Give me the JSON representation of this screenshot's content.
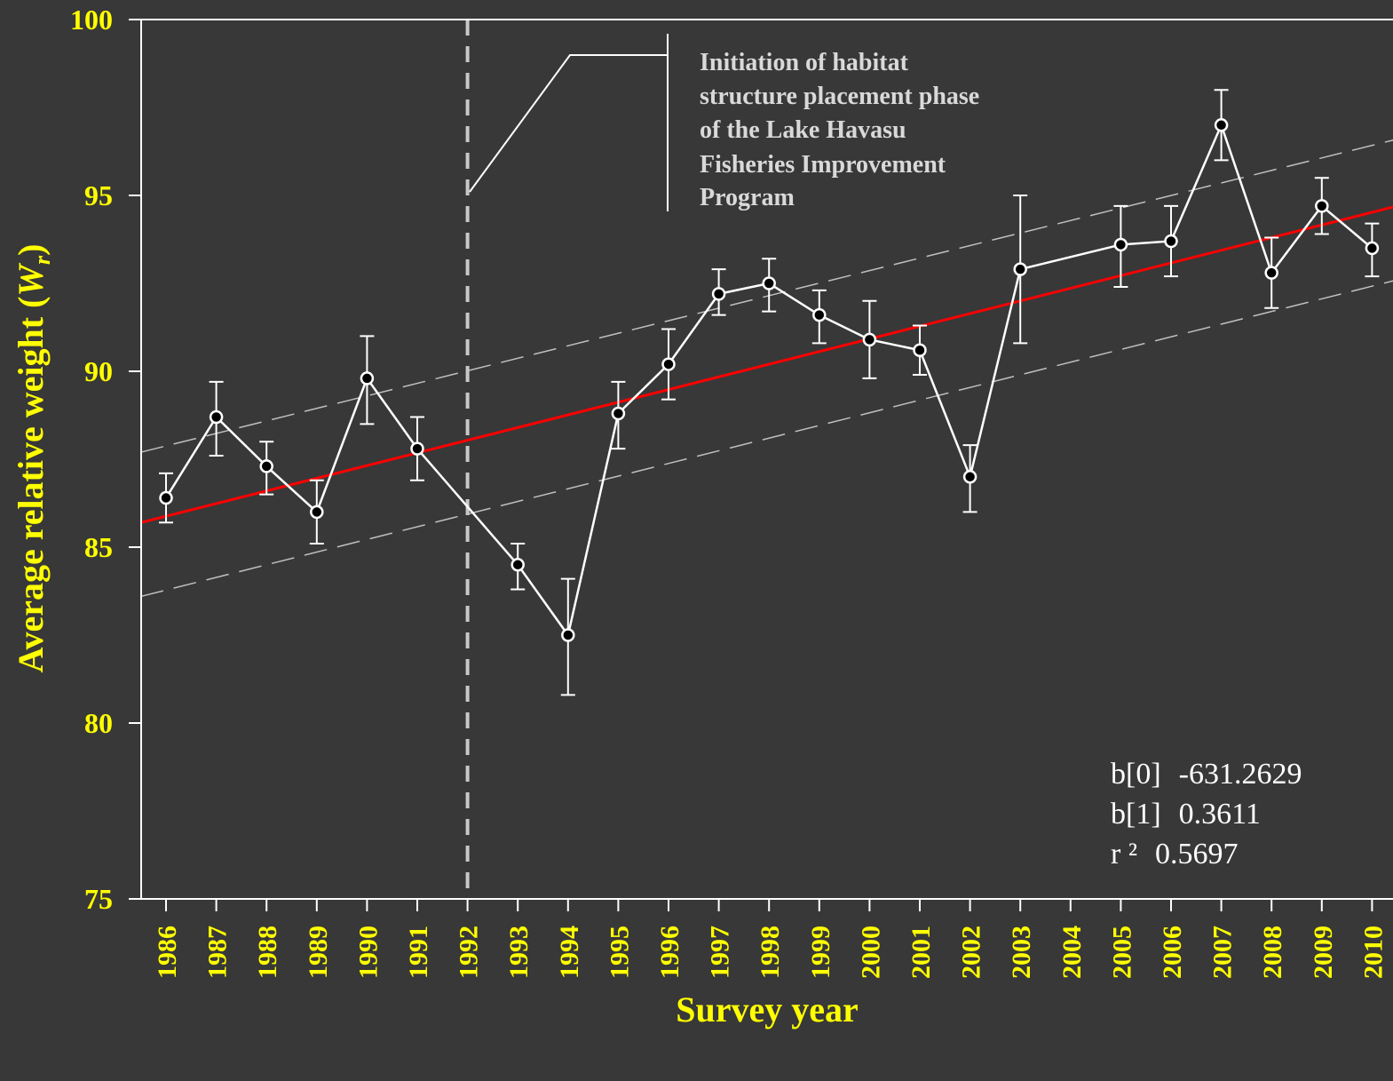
{
  "chart_data": {
    "type": "line",
    "xlabel": "Survey year",
    "ylabel_main": "Average relative weight (",
    "ylabel_var": "W",
    "ylabel_sub": "r",
    "ylabel_close": ")",
    "ylim": [
      75,
      100
    ],
    "yticks": [
      75,
      80,
      85,
      90,
      95,
      100
    ],
    "categories": [
      "1986",
      "1987",
      "1988",
      "1989",
      "1990",
      "1991",
      "1992",
      "1993",
      "1994",
      "1995",
      "1996",
      "1997",
      "1998",
      "1999",
      "2000",
      "2001",
      "2002",
      "2003",
      "2004",
      "2005",
      "2006",
      "2007",
      "2008",
      "2009",
      "2010"
    ],
    "series": [
      {
        "points": [
          {
            "x": "1986",
            "y": 86.4,
            "lo": 85.7,
            "hi": 87.1
          },
          {
            "x": "1987",
            "y": 88.7,
            "lo": 87.6,
            "hi": 89.7
          },
          {
            "x": "1988",
            "y": 87.3,
            "lo": 86.5,
            "hi": 88.0
          },
          {
            "x": "1989",
            "y": 86.0,
            "lo": 85.1,
            "hi": 86.9
          },
          {
            "x": "1990",
            "y": 89.8,
            "lo": 88.5,
            "hi": 91.0
          },
          {
            "x": "1991",
            "y": 87.8,
            "lo": 86.9,
            "hi": 88.7
          },
          {
            "x": "1993",
            "y": 84.5,
            "lo": 83.8,
            "hi": 85.1
          },
          {
            "x": "1994",
            "y": 82.5,
            "lo": 80.8,
            "hi": 84.1
          },
          {
            "x": "1995",
            "y": 88.8,
            "lo": 87.8,
            "hi": 89.7
          },
          {
            "x": "1996",
            "y": 90.2,
            "lo": 89.2,
            "hi": 91.2
          },
          {
            "x": "1997",
            "y": 92.2,
            "lo": 91.6,
            "hi": 92.9
          },
          {
            "x": "1998",
            "y": 92.5,
            "lo": 91.7,
            "hi": 93.2
          },
          {
            "x": "1999",
            "y": 91.6,
            "lo": 90.8,
            "hi": 92.3
          },
          {
            "x": "2000",
            "y": 90.9,
            "lo": 89.8,
            "hi": 92.0
          },
          {
            "x": "2001",
            "y": 90.6,
            "lo": 89.9,
            "hi": 91.3
          },
          {
            "x": "2002",
            "y": 87.0,
            "lo": 86.0,
            "hi": 87.9
          },
          {
            "x": "2003",
            "y": 92.9,
            "lo": 90.8,
            "hi": 95.0
          },
          {
            "x": "2005",
            "y": 93.6,
            "lo": 92.4,
            "hi": 94.7
          },
          {
            "x": "2006",
            "y": 93.7,
            "lo": 92.7,
            "hi": 94.7
          },
          {
            "x": "2007",
            "y": 97.0,
            "lo": 96.0,
            "hi": 98.0
          },
          {
            "x": "2008",
            "y": 92.8,
            "lo": 91.8,
            "hi": 93.8
          },
          {
            "x": "2009",
            "y": 94.7,
            "lo": 93.9,
            "hi": 95.5
          },
          {
            "x": "2010",
            "y": 93.5,
            "lo": 92.7,
            "hi": 94.2
          }
        ]
      }
    ],
    "regression": {
      "from": [
        1985.5,
        85.7
      ],
      "to": [
        2010.5,
        94.7
      ]
    },
    "confidence_upper": {
      "from": [
        1985.5,
        87.7
      ],
      "to": [
        2010.5,
        96.6
      ]
    },
    "confidence_lower": {
      "from": [
        1985.5,
        83.6
      ],
      "to": [
        2010.5,
        92.6
      ]
    },
    "vline_x": "1992",
    "annotation": {
      "lines": [
        "Initiation of habitat",
        "structure placement phase",
        "of the Lake Havasu",
        "Fisheries Improvement",
        "Program"
      ]
    },
    "stats": [
      {
        "label": "b[0]",
        "value": "-631.2629"
      },
      {
        "label": "b[1]",
        "value": "0.3611"
      },
      {
        "label": "r ²",
        "value": "0.5697"
      }
    ],
    "colors": {
      "background": "#383838",
      "axis": "#ffffff",
      "labels": "#ffff00",
      "series": "#ffffff",
      "regression": "#ff0000",
      "confidence": "#bfbfbf",
      "vline": "#c8c8c8",
      "annotation_text": "#d9d9d9"
    }
  }
}
